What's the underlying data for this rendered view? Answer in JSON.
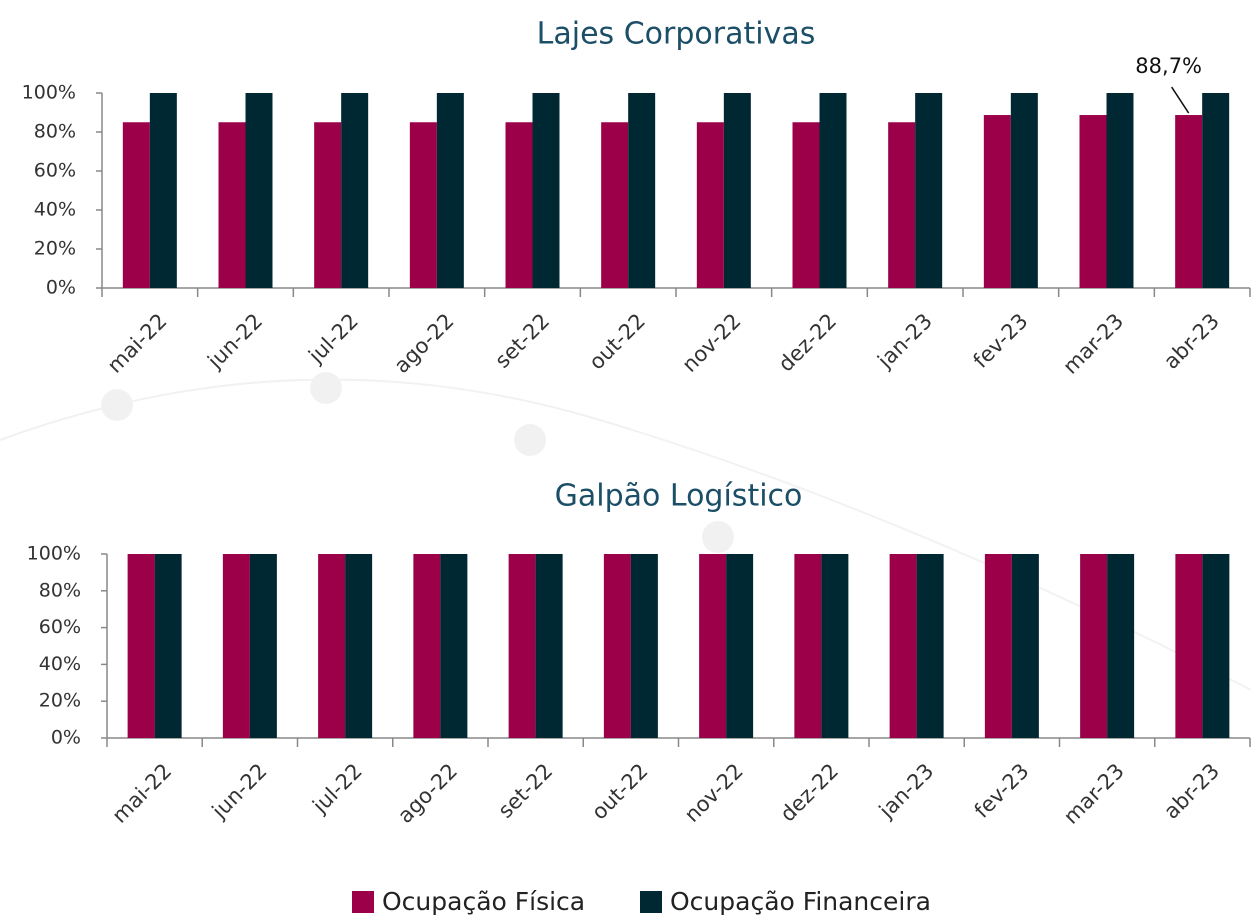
{
  "chart_data": [
    {
      "type": "bar",
      "title": "Lajes Corporativas",
      "categories": [
        "mai-22",
        "jun-22",
        "jul-22",
        "ago-22",
        "set-22",
        "out-22",
        "nov-22",
        "dez-22",
        "jan-23",
        "fev-23",
        "mar-23",
        "abr-23"
      ],
      "series": [
        {
          "name": "Ocupação Física",
          "color": "#9b0048",
          "values": [
            85,
            85,
            85,
            85,
            85,
            85,
            85,
            85,
            85,
            88.7,
            88.7,
            88.7
          ],
          "value_labels": [
            null,
            null,
            null,
            null,
            null,
            null,
            null,
            null,
            null,
            null,
            null,
            "88,7%"
          ]
        },
        {
          "name": "Ocupação Financeira",
          "color": "#002833",
          "values": [
            100,
            100,
            100,
            100,
            100,
            100,
            100,
            100,
            100,
            100,
            100,
            100
          ]
        }
      ],
      "ylim": [
        0,
        100
      ],
      "yticks": [
        {
          "value": 0,
          "label": "0%"
        },
        {
          "value": 20,
          "label": "20%"
        },
        {
          "value": 40,
          "label": "40%"
        },
        {
          "value": 60,
          "label": "60%"
        },
        {
          "value": 80,
          "label": "80%"
        },
        {
          "value": 100,
          "label": "100%"
        }
      ]
    },
    {
      "type": "bar",
      "title": "Galpão Logístico",
      "categories": [
        "mai-22",
        "jun-22",
        "jul-22",
        "ago-22",
        "set-22",
        "out-22",
        "nov-22",
        "dez-22",
        "jan-23",
        "fev-23",
        "mar-23",
        "abr-23"
      ],
      "series": [
        {
          "color": "#9b0048",
          "values": [
            100,
            100,
            100,
            100,
            100,
            100,
            100,
            100,
            100,
            100,
            100,
            100
          ]
        },
        {
          "color": "#002833",
          "values": [
            100,
            100,
            100,
            100,
            100,
            100,
            100,
            100,
            100,
            100,
            100,
            100
          ]
        }
      ],
      "ylim": [
        0,
        100
      ],
      "yticks": [
        {
          "value": 0,
          "label": "0%"
        },
        {
          "value": 20,
          "label": "20%"
        },
        {
          "value": 40,
          "label": "40%"
        },
        {
          "value": 60,
          "label": "60%"
        },
        {
          "value": 80,
          "label": "80%"
        },
        {
          "value": 100,
          "label": "100%"
        }
      ]
    }
  ]
}
